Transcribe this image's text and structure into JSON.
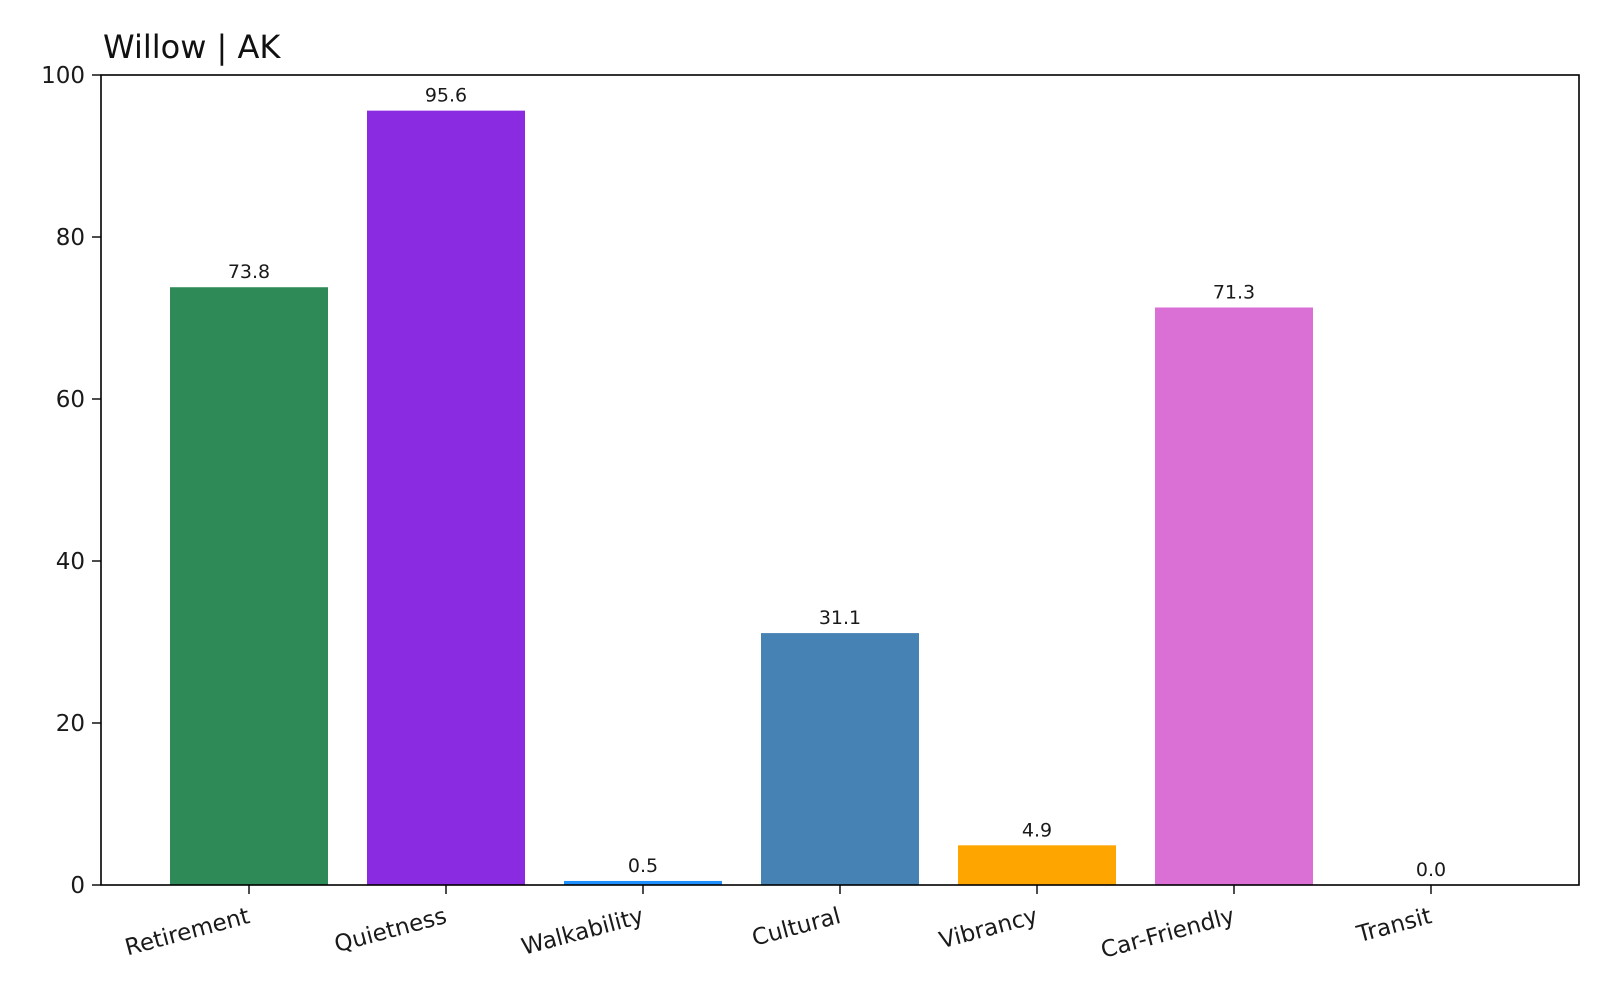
{
  "chart_data": {
    "type": "bar",
    "title": "Willow | AK",
    "xlabel": "",
    "ylabel": "",
    "categories": [
      "Retirement",
      "Quietness",
      "Walkability",
      "Cultural",
      "Vibrancy",
      "Car-Friendly",
      "Transit"
    ],
    "values": [
      73.8,
      95.6,
      0.5,
      31.1,
      4.9,
      71.3,
      0.0
    ],
    "value_labels": [
      "73.8",
      "95.6",
      "0.5",
      "31.1",
      "4.9",
      "71.3",
      "0.0"
    ],
    "colors": [
      "#2e8b57",
      "#8a2be2",
      "#1e90ff",
      "#4682b4",
      "#ffa500",
      "#da70d6",
      "#808080"
    ],
    "ylim": [
      0,
      100
    ],
    "yticks": [
      0,
      20,
      40,
      60,
      80,
      100
    ],
    "ytick_labels": [
      "0",
      "20",
      "40",
      "60",
      "80",
      "100"
    ],
    "grid": false,
    "legend": "none"
  }
}
